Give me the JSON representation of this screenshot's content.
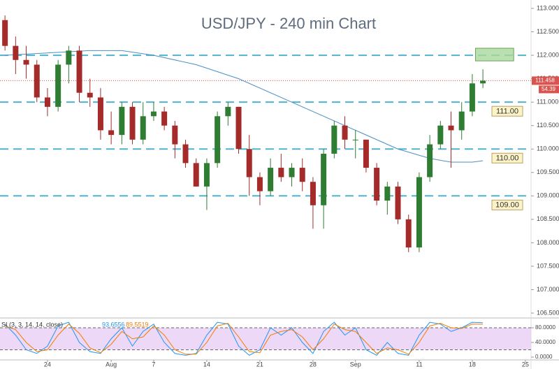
{
  "chart_data": {
    "type": "candlestick",
    "title": "USD/JPY - 240 min Chart",
    "xlim": [
      -0.47,
      52
    ],
    "xticks": [
      {
        "value": 4,
        "label": "24"
      },
      {
        "value": 10,
        "label": "Aug"
      },
      {
        "value": 14,
        "label": "7"
      },
      {
        "value": 19,
        "label": "14"
      },
      {
        "value": 24,
        "label": "21"
      },
      {
        "value": 29,
        "label": "28"
      },
      {
        "value": 33,
        "label": "Sep"
      },
      {
        "value": 39,
        "label": "11"
      },
      {
        "value": 44,
        "label": "18"
      },
      {
        "value": 49,
        "label": "25"
      }
    ],
    "ylim": [
      106.5,
      113
    ],
    "yticks": [
      {
        "value": 113,
        "label": "113.000"
      },
      {
        "value": 112.5,
        "label": "112.500"
      },
      {
        "value": 112,
        "label": "112.000"
      },
      {
        "value": 111.5,
        "label": "111.500"
      },
      {
        "value": 111,
        "label": "111.000"
      },
      {
        "value": 110.5,
        "label": "110.500"
      },
      {
        "value": 110,
        "label": "110.000"
      },
      {
        "value": 109.5,
        "label": "109.500"
      },
      {
        "value": 109,
        "label": "109.000"
      },
      {
        "value": 108.5,
        "label": "108.500"
      },
      {
        "value": 108,
        "label": "108.000"
      },
      {
        "value": 107.5,
        "label": "107.500"
      },
      {
        "value": 107,
        "label": "107.000"
      },
      {
        "value": 106.5,
        "label": "106.500"
      }
    ],
    "up_color": "#2e7d32",
    "down_color": "#a52a2a",
    "open": [
      112.75,
      112.2,
      111.9,
      111.8,
      111.1,
      110.9,
      111.8,
      112.1,
      111.2,
      111.1,
      110.4,
      110.3,
      110.9,
      110.2,
      110.7,
      110.8,
      110.5,
      110.1,
      109.7,
      109.2,
      109.7,
      110.7,
      110.9,
      110.0,
      109.4,
      109.1,
      109.6,
      109.4,
      109.6,
      109.3,
      108.8,
      109.9,
      110.5,
      110.2,
      110.2,
      109.6,
      108.9,
      109.2,
      108.5,
      107.9,
      109.4,
      110.1,
      110.5,
      110.4,
      110.8,
      111.4
    ],
    "high": [
      112.85,
      112.4,
      112.2,
      111.9,
      111.3,
      111.9,
      112.2,
      112.2,
      111.5,
      111.3,
      110.8,
      111.0,
      111.0,
      111.0,
      111.0,
      110.9,
      110.6,
      110.2,
      109.8,
      109.8,
      110.8,
      111.0,
      110.9,
      110.3,
      109.5,
      109.8,
      109.9,
      109.7,
      109.8,
      109.4,
      110.0,
      110.6,
      110.7,
      110.4,
      110.2,
      109.7,
      109.3,
      109.3,
      108.6,
      109.5,
      110.3,
      110.6,
      110.8,
      111.0,
      111.6,
      111.7
    ],
    "low": [
      112.1,
      111.6,
      111.5,
      111.0,
      110.7,
      110.8,
      111.4,
      111.0,
      110.9,
      110.2,
      110.1,
      110.1,
      110.1,
      110.1,
      110.6,
      110.4,
      109.8,
      109.6,
      109.2,
      108.7,
      109.6,
      110.5,
      109.9,
      109.0,
      108.8,
      109.0,
      109.3,
      109.2,
      109.1,
      108.3,
      108.3,
      109.8,
      110.0,
      109.8,
      109.5,
      108.8,
      108.6,
      108.4,
      107.8,
      107.8,
      109.3,
      110.0,
      109.6,
      110.2,
      110.7,
      111.3
    ],
    "close": [
      112.2,
      111.9,
      111.8,
      111.1,
      110.9,
      111.8,
      112.1,
      111.2,
      111.1,
      110.4,
      110.3,
      110.9,
      110.2,
      110.7,
      110.8,
      110.5,
      110.1,
      109.7,
      109.2,
      109.7,
      110.7,
      110.9,
      110.0,
      109.4,
      109.1,
      109.6,
      109.4,
      109.6,
      109.3,
      108.8,
      109.9,
      110.5,
      110.2,
      110.2,
      109.6,
      108.9,
      109.2,
      108.5,
      107.9,
      109.4,
      110.1,
      110.5,
      110.4,
      110.8,
      111.4,
      111.458
    ],
    "ma": {
      "color": "#4a8fc4",
      "x": [
        0,
        4,
        8,
        11,
        14,
        18,
        22,
        26,
        30,
        34,
        37,
        40,
        42,
        44,
        45
      ],
      "values": [
        112.0,
        112.05,
        112.1,
        112.1,
        112.0,
        111.8,
        111.5,
        111.1,
        110.7,
        110.3,
        110.0,
        109.8,
        109.72,
        109.72,
        109.75
      ]
    },
    "levels": [
      112,
      {
        "value": 111,
        "label": "111.00"
      },
      {
        "value": 110,
        "label": "110.00"
      },
      {
        "value": 109,
        "label": "109.00"
      }
    ],
    "level_color": "#4fb3cf",
    "zone": {
      "x": [
        44.3,
        47.9
      ],
      "y": [
        111.88,
        112.15
      ],
      "color": "#a8d89a"
    },
    "last_price": {
      "value": 111.458,
      "label": "111.458"
    },
    "badge": "54.39",
    "rsi": {
      "label": "SI (3, 3, 14, 14, close)",
      "ylim": [
        0,
        100
      ],
      "yticks": [
        {
          "value": 80,
          "label": "80.0000"
        },
        {
          "value": 40,
          "label": "40.0000"
        },
        {
          "value": 0,
          "label": "0.0000"
        }
      ],
      "band": [
        20,
        80
      ],
      "series": [
        {
          "color": "#2196f3",
          "values": [
            90,
            60,
            20,
            10,
            30,
            85,
            95,
            40,
            15,
            10,
            50,
            80,
            30,
            70,
            90,
            40,
            10,
            5,
            10,
            60,
            95,
            90,
            30,
            5,
            20,
            80,
            60,
            80,
            40,
            10,
            70,
            95,
            60,
            80,
            20,
            5,
            40,
            10,
            5,
            60,
            95,
            90,
            70,
            80,
            95,
            93.6556
          ],
          "last_label": "93.6556"
        },
        {
          "color": "#f57c00",
          "values": [
            85,
            75,
            40,
            15,
            20,
            60,
            90,
            65,
            25,
            12,
            35,
            70,
            50,
            55,
            85,
            60,
            20,
            8,
            8,
            40,
            85,
            92,
            55,
            15,
            12,
            60,
            70,
            75,
            55,
            20,
            50,
            90,
            75,
            70,
            40,
            10,
            25,
            20,
            8,
            40,
            85,
            92,
            80,
            78,
            90,
            89.5519
          ],
          "last_label": "89.5519"
        }
      ]
    }
  }
}
